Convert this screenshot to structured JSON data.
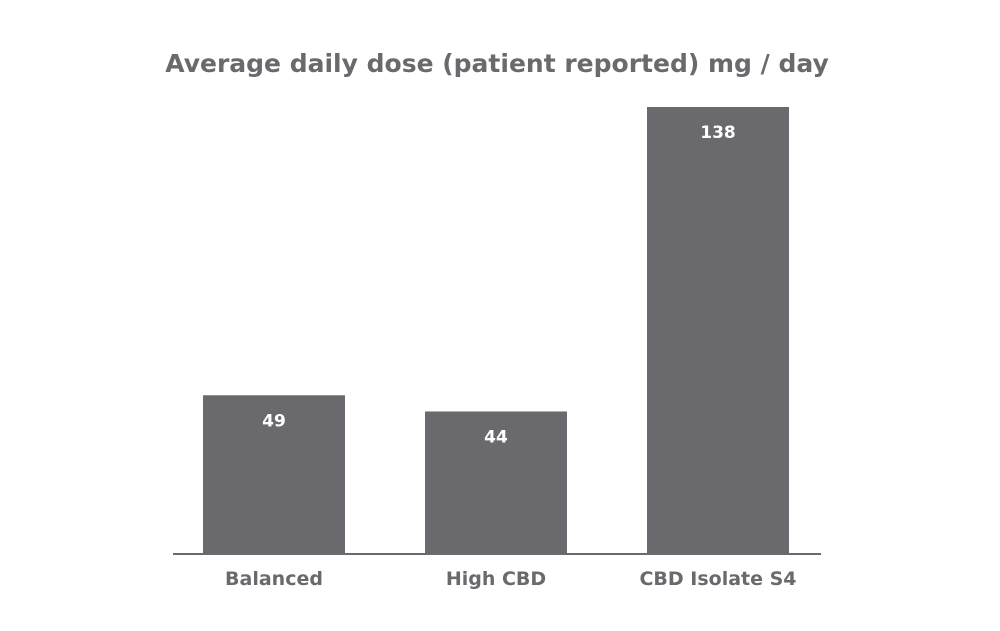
{
  "chart_data": {
    "type": "bar",
    "title": "Average daily dose (patient reported) mg / day",
    "categories": [
      "Balanced",
      "High CBD",
      "CBD Isolate S4"
    ],
    "values": [
      49,
      44,
      138
    ],
    "data_labels": [
      "49",
      "44",
      "138"
    ],
    "ylim": [
      0,
      138
    ],
    "grid": false,
    "bar_color": "#6a6a6e",
    "label_color": "#ffffff",
    "text_color": "#6a6a6e"
  }
}
